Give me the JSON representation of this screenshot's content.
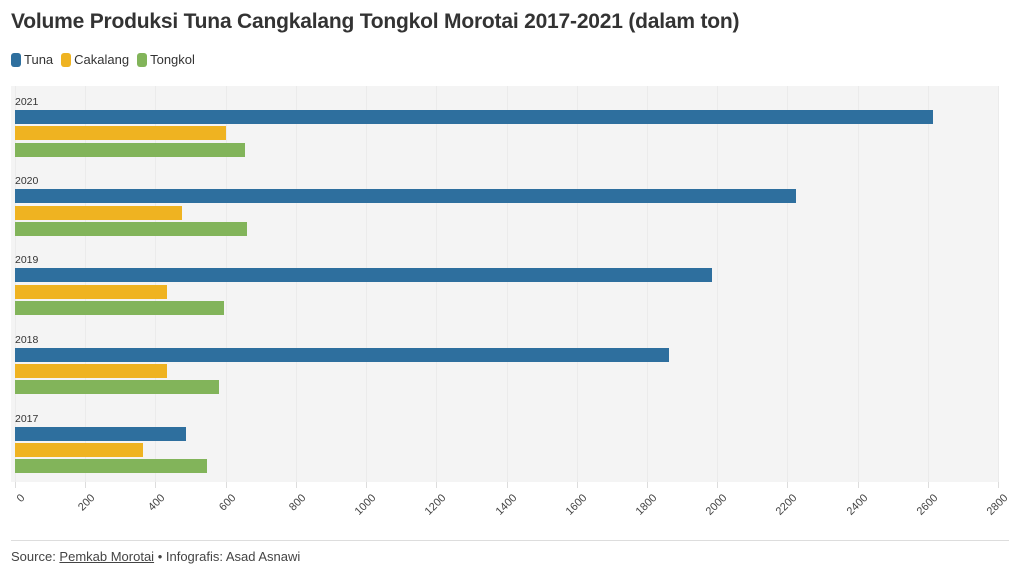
{
  "header": {
    "title": "Volume Produksi Tuna Cangkalang Tongkol Morotai 2017-2021 (dalam ton)"
  },
  "legend": [
    {
      "label": "Tuna",
      "color": "#2e6f9e"
    },
    {
      "label": "Cakalang",
      "color": "#efb321"
    },
    {
      "label": "Tongkol",
      "color": "#82b45a"
    }
  ],
  "footer": {
    "source_prefix": "Source: ",
    "source_link": "Pemkab Morotai",
    "separator": " • ",
    "credit": "Infografis: Asad Asnawi"
  },
  "chart_data": {
    "type": "bar",
    "orientation": "horizontal",
    "title": "Volume Produksi Tuna Cangkalang Tongkol Morotai 2017-2021 (dalam ton)",
    "xlabel": "",
    "ylabel": "",
    "categories": [
      "2021",
      "2020",
      "2019",
      "2018",
      "2017"
    ],
    "series": [
      {
        "name": "Tuna",
        "color": "#2e6f9e",
        "values": [
          2614,
          2224,
          1986,
          1864,
          486
        ]
      },
      {
        "name": "Cakalang",
        "color": "#efb321",
        "values": [
          601,
          476,
          434,
          432,
          365
        ]
      },
      {
        "name": "Tongkol",
        "color": "#82b45a",
        "values": [
          655,
          661,
          594,
          582,
          546
        ]
      }
    ],
    "xlim": [
      0,
      2800
    ],
    "x_ticks": [
      "0",
      "200",
      "400",
      "600",
      "800",
      "1000",
      "1200",
      "1400",
      "1600",
      "1800",
      "2000",
      "2200",
      "2400",
      "2600",
      "2800"
    ],
    "grid": true,
    "legend_position": "top-left"
  }
}
